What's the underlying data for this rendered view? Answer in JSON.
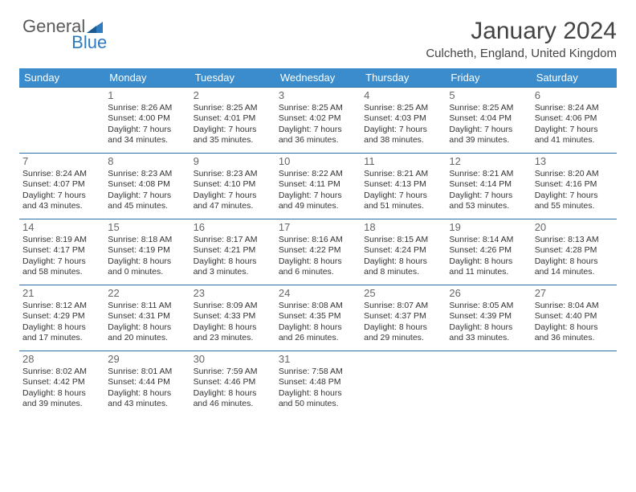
{
  "logo": {
    "text_left": "General",
    "text_right": "Blue"
  },
  "header": {
    "title": "January 2024",
    "location": "Culcheth, England, United Kingdom"
  },
  "colors": {
    "header_bg": "#3a8ccc",
    "header_text": "#ffffff",
    "row_border": "#2d6fa8",
    "logo_blue": "#2f7bbf",
    "logo_gray": "#5a5a5a"
  },
  "day_names": [
    "Sunday",
    "Monday",
    "Tuesday",
    "Wednesday",
    "Thursday",
    "Friday",
    "Saturday"
  ],
  "weeks": [
    [
      {},
      {
        "n": "1",
        "sr": "Sunrise: 8:26 AM",
        "ss": "Sunset: 4:00 PM",
        "dl1": "Daylight: 7 hours",
        "dl2": "and 34 minutes."
      },
      {
        "n": "2",
        "sr": "Sunrise: 8:25 AM",
        "ss": "Sunset: 4:01 PM",
        "dl1": "Daylight: 7 hours",
        "dl2": "and 35 minutes."
      },
      {
        "n": "3",
        "sr": "Sunrise: 8:25 AM",
        "ss": "Sunset: 4:02 PM",
        "dl1": "Daylight: 7 hours",
        "dl2": "and 36 minutes."
      },
      {
        "n": "4",
        "sr": "Sunrise: 8:25 AM",
        "ss": "Sunset: 4:03 PM",
        "dl1": "Daylight: 7 hours",
        "dl2": "and 38 minutes."
      },
      {
        "n": "5",
        "sr": "Sunrise: 8:25 AM",
        "ss": "Sunset: 4:04 PM",
        "dl1": "Daylight: 7 hours",
        "dl2": "and 39 minutes."
      },
      {
        "n": "6",
        "sr": "Sunrise: 8:24 AM",
        "ss": "Sunset: 4:06 PM",
        "dl1": "Daylight: 7 hours",
        "dl2": "and 41 minutes."
      }
    ],
    [
      {
        "n": "7",
        "sr": "Sunrise: 8:24 AM",
        "ss": "Sunset: 4:07 PM",
        "dl1": "Daylight: 7 hours",
        "dl2": "and 43 minutes."
      },
      {
        "n": "8",
        "sr": "Sunrise: 8:23 AM",
        "ss": "Sunset: 4:08 PM",
        "dl1": "Daylight: 7 hours",
        "dl2": "and 45 minutes."
      },
      {
        "n": "9",
        "sr": "Sunrise: 8:23 AM",
        "ss": "Sunset: 4:10 PM",
        "dl1": "Daylight: 7 hours",
        "dl2": "and 47 minutes."
      },
      {
        "n": "10",
        "sr": "Sunrise: 8:22 AM",
        "ss": "Sunset: 4:11 PM",
        "dl1": "Daylight: 7 hours",
        "dl2": "and 49 minutes."
      },
      {
        "n": "11",
        "sr": "Sunrise: 8:21 AM",
        "ss": "Sunset: 4:13 PM",
        "dl1": "Daylight: 7 hours",
        "dl2": "and 51 minutes."
      },
      {
        "n": "12",
        "sr": "Sunrise: 8:21 AM",
        "ss": "Sunset: 4:14 PM",
        "dl1": "Daylight: 7 hours",
        "dl2": "and 53 minutes."
      },
      {
        "n": "13",
        "sr": "Sunrise: 8:20 AM",
        "ss": "Sunset: 4:16 PM",
        "dl1": "Daylight: 7 hours",
        "dl2": "and 55 minutes."
      }
    ],
    [
      {
        "n": "14",
        "sr": "Sunrise: 8:19 AM",
        "ss": "Sunset: 4:17 PM",
        "dl1": "Daylight: 7 hours",
        "dl2": "and 58 minutes."
      },
      {
        "n": "15",
        "sr": "Sunrise: 8:18 AM",
        "ss": "Sunset: 4:19 PM",
        "dl1": "Daylight: 8 hours",
        "dl2": "and 0 minutes."
      },
      {
        "n": "16",
        "sr": "Sunrise: 8:17 AM",
        "ss": "Sunset: 4:21 PM",
        "dl1": "Daylight: 8 hours",
        "dl2": "and 3 minutes."
      },
      {
        "n": "17",
        "sr": "Sunrise: 8:16 AM",
        "ss": "Sunset: 4:22 PM",
        "dl1": "Daylight: 8 hours",
        "dl2": "and 6 minutes."
      },
      {
        "n": "18",
        "sr": "Sunrise: 8:15 AM",
        "ss": "Sunset: 4:24 PM",
        "dl1": "Daylight: 8 hours",
        "dl2": "and 8 minutes."
      },
      {
        "n": "19",
        "sr": "Sunrise: 8:14 AM",
        "ss": "Sunset: 4:26 PM",
        "dl1": "Daylight: 8 hours",
        "dl2": "and 11 minutes."
      },
      {
        "n": "20",
        "sr": "Sunrise: 8:13 AM",
        "ss": "Sunset: 4:28 PM",
        "dl1": "Daylight: 8 hours",
        "dl2": "and 14 minutes."
      }
    ],
    [
      {
        "n": "21",
        "sr": "Sunrise: 8:12 AM",
        "ss": "Sunset: 4:29 PM",
        "dl1": "Daylight: 8 hours",
        "dl2": "and 17 minutes."
      },
      {
        "n": "22",
        "sr": "Sunrise: 8:11 AM",
        "ss": "Sunset: 4:31 PM",
        "dl1": "Daylight: 8 hours",
        "dl2": "and 20 minutes."
      },
      {
        "n": "23",
        "sr": "Sunrise: 8:09 AM",
        "ss": "Sunset: 4:33 PM",
        "dl1": "Daylight: 8 hours",
        "dl2": "and 23 minutes."
      },
      {
        "n": "24",
        "sr": "Sunrise: 8:08 AM",
        "ss": "Sunset: 4:35 PM",
        "dl1": "Daylight: 8 hours",
        "dl2": "and 26 minutes."
      },
      {
        "n": "25",
        "sr": "Sunrise: 8:07 AM",
        "ss": "Sunset: 4:37 PM",
        "dl1": "Daylight: 8 hours",
        "dl2": "and 29 minutes."
      },
      {
        "n": "26",
        "sr": "Sunrise: 8:05 AM",
        "ss": "Sunset: 4:39 PM",
        "dl1": "Daylight: 8 hours",
        "dl2": "and 33 minutes."
      },
      {
        "n": "27",
        "sr": "Sunrise: 8:04 AM",
        "ss": "Sunset: 4:40 PM",
        "dl1": "Daylight: 8 hours",
        "dl2": "and 36 minutes."
      }
    ],
    [
      {
        "n": "28",
        "sr": "Sunrise: 8:02 AM",
        "ss": "Sunset: 4:42 PM",
        "dl1": "Daylight: 8 hours",
        "dl2": "and 39 minutes."
      },
      {
        "n": "29",
        "sr": "Sunrise: 8:01 AM",
        "ss": "Sunset: 4:44 PM",
        "dl1": "Daylight: 8 hours",
        "dl2": "and 43 minutes."
      },
      {
        "n": "30",
        "sr": "Sunrise: 7:59 AM",
        "ss": "Sunset: 4:46 PM",
        "dl1": "Daylight: 8 hours",
        "dl2": "and 46 minutes."
      },
      {
        "n": "31",
        "sr": "Sunrise: 7:58 AM",
        "ss": "Sunset: 4:48 PM",
        "dl1": "Daylight: 8 hours",
        "dl2": "and 50 minutes."
      },
      {},
      {},
      {}
    ]
  ]
}
